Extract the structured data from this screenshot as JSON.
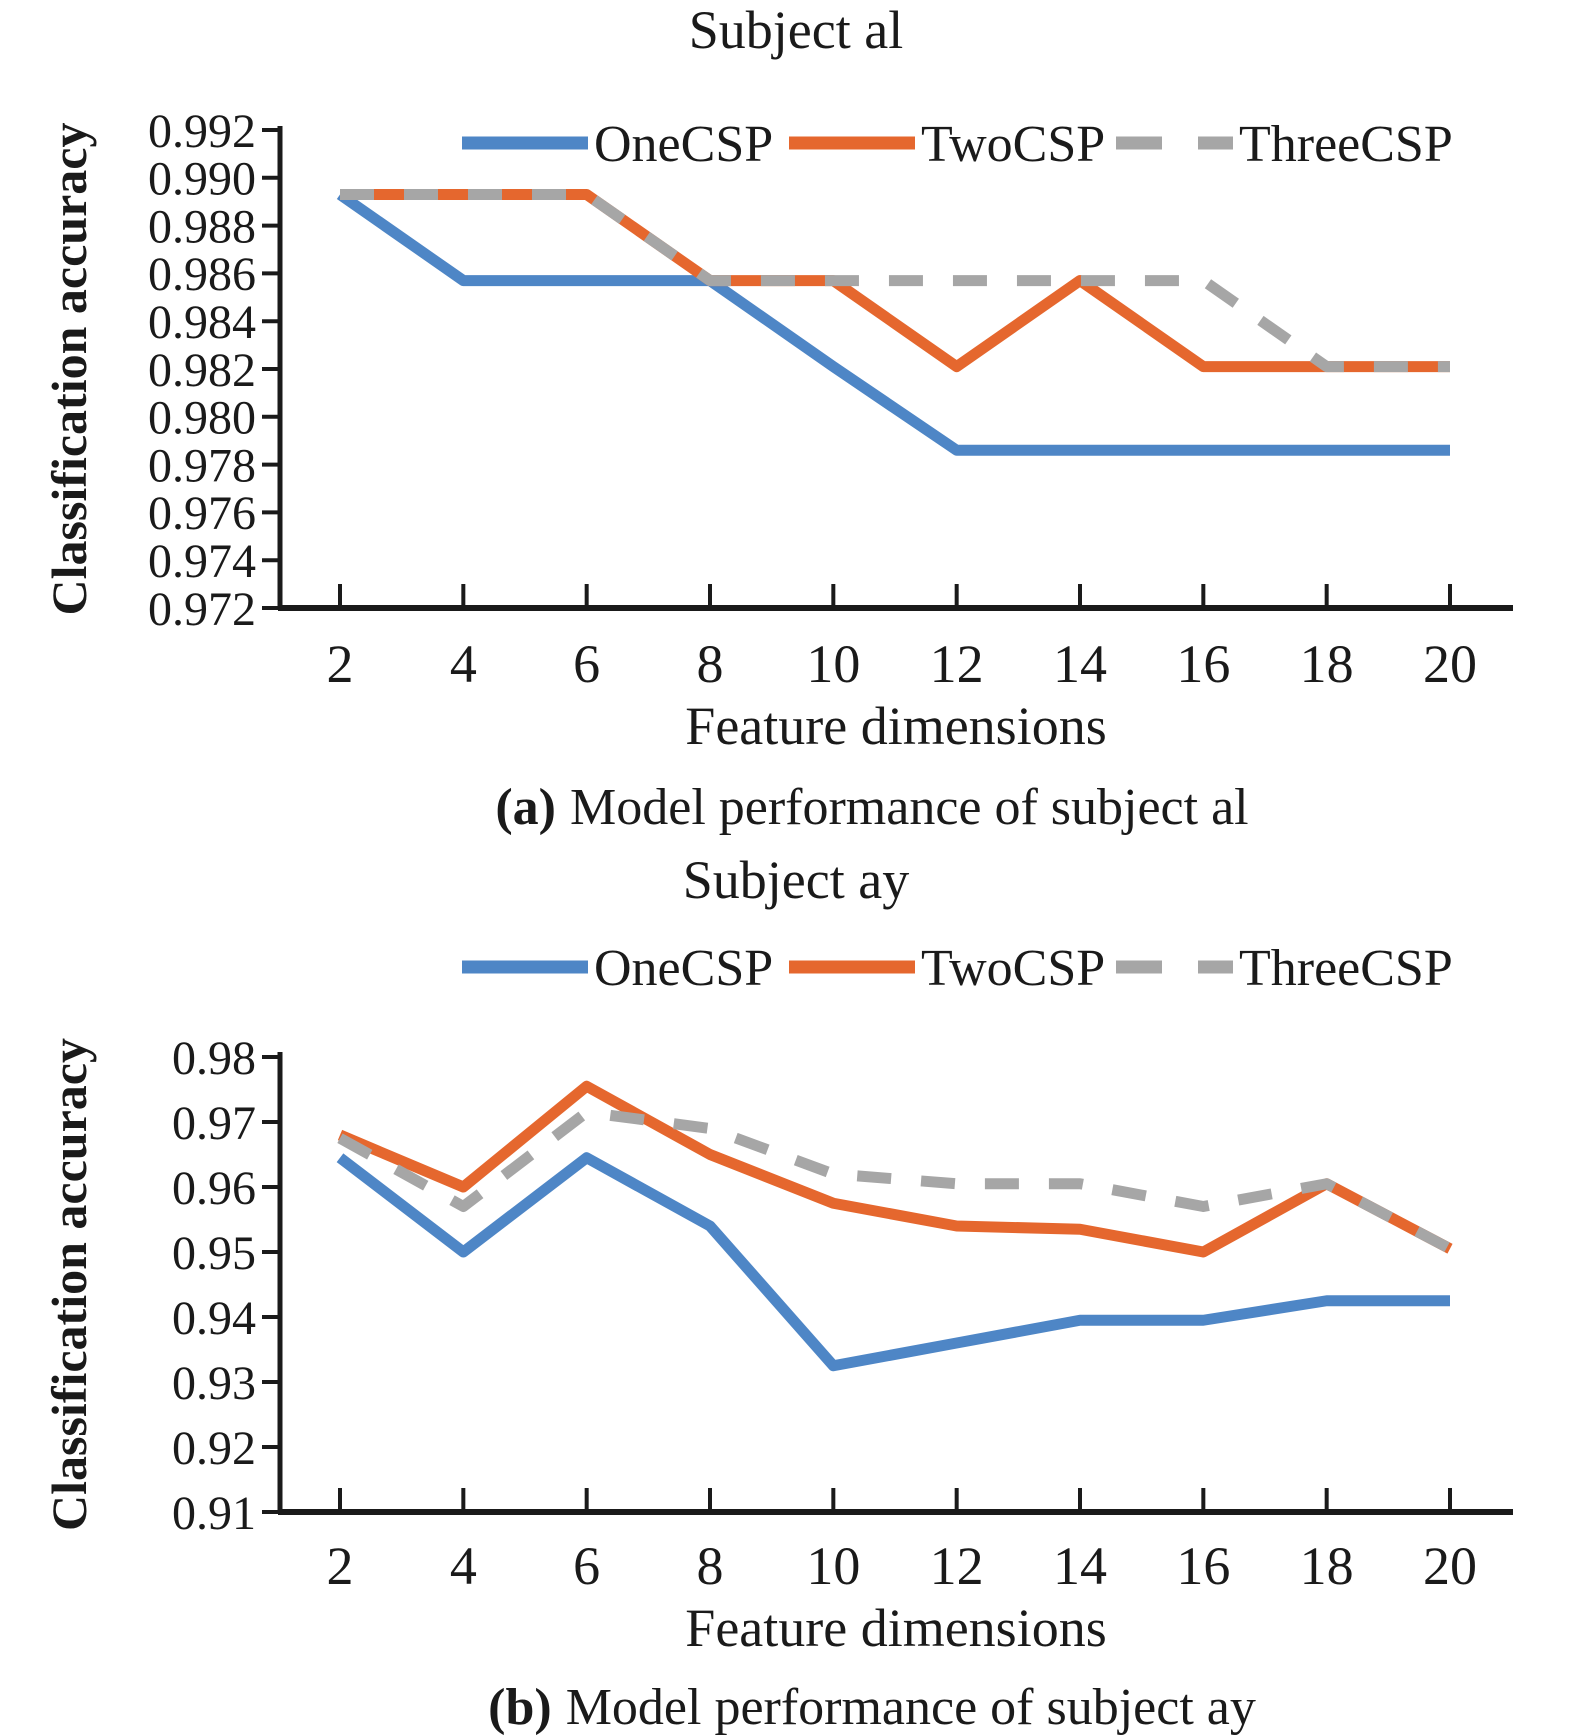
{
  "figure": {
    "background": "#ffffff",
    "text_color": "#1a1a1a",
    "axis_color": "#1a1a1a"
  },
  "chart_data": [
    {
      "type": "line",
      "title": "Subject al",
      "xlabel": "Feature dimensions",
      "ylabel": "Classification accuracy",
      "caption_label": "(a)",
      "caption_text": "Model performance of subject al",
      "legend_position": "top-inside",
      "grid": false,
      "x": [
        2,
        4,
        6,
        8,
        10,
        12,
        14,
        16,
        18,
        20
      ],
      "xlim": [
        2,
        20
      ],
      "ylim": [
        0.972,
        0.992
      ],
      "x_tick_labels": [
        "2",
        "4",
        "6",
        "8",
        "10",
        "12",
        "14",
        "16",
        "18",
        "20"
      ],
      "y_tick_labels": [
        "0.992",
        "0.990",
        "0.988",
        "0.986",
        "0.984",
        "0.982",
        "0.980",
        "0.978",
        "0.976",
        "0.974",
        "0.972"
      ],
      "series": [
        {
          "name": "OneCSP",
          "color": "#4E86C6",
          "line_style": "solid",
          "values": [
            0.9893,
            0.9857,
            0.9857,
            0.9857,
            0.9821,
            0.9786,
            0.9786,
            0.9786,
            0.9786,
            0.9786
          ]
        },
        {
          "name": "TwoCSP",
          "color": "#E5672E",
          "line_style": "solid",
          "values": [
            0.9893,
            0.9893,
            0.9893,
            0.9857,
            0.9857,
            0.9821,
            0.9857,
            0.9821,
            0.9821,
            0.9821
          ]
        },
        {
          "name": "ThreeCSP",
          "color": "#A6A6A6",
          "line_style": "dashed",
          "values": [
            0.9893,
            0.9893,
            0.9893,
            0.9857,
            0.9857,
            0.9857,
            0.9857,
            0.9857,
            0.9821,
            0.9821
          ]
        }
      ]
    },
    {
      "type": "line",
      "title": "Subject ay",
      "xlabel": "Feature dimensions",
      "ylabel": "Classification accuracy",
      "caption_label": "(b)",
      "caption_text": "Model performance of subject ay",
      "legend_position": "top-inside",
      "grid": false,
      "x": [
        2,
        4,
        6,
        8,
        10,
        12,
        14,
        16,
        18,
        20
      ],
      "xlim": [
        2,
        20
      ],
      "ylim": [
        0.91,
        0.98
      ],
      "x_tick_labels": [
        "2",
        "4",
        "6",
        "8",
        "10",
        "12",
        "14",
        "16",
        "18",
        "20"
      ],
      "y_tick_labels": [
        "0.98",
        "0.97",
        "0.96",
        "0.95",
        "0.94",
        "0.93",
        "0.92",
        "0.91"
      ],
      "series": [
        {
          "name": "OneCSP",
          "color": "#4E86C6",
          "line_style": "solid",
          "values": [
            0.9645,
            0.95,
            0.9645,
            0.954,
            0.9325,
            0.936,
            0.9395,
            0.9395,
            0.9425,
            0.9425
          ]
        },
        {
          "name": "TwoCSP",
          "color": "#E5672E",
          "line_style": "solid",
          "values": [
            0.968,
            0.96,
            0.9755,
            0.965,
            0.9575,
            0.954,
            0.9535,
            0.95,
            0.9605,
            0.9505
          ]
        },
        {
          "name": "ThreeCSP",
          "color": "#A6A6A6",
          "line_style": "dashed",
          "values": [
            0.9675,
            0.957,
            0.9715,
            0.969,
            0.962,
            0.9605,
            0.9605,
            0.957,
            0.9605,
            0.9505
          ]
        }
      ]
    }
  ]
}
